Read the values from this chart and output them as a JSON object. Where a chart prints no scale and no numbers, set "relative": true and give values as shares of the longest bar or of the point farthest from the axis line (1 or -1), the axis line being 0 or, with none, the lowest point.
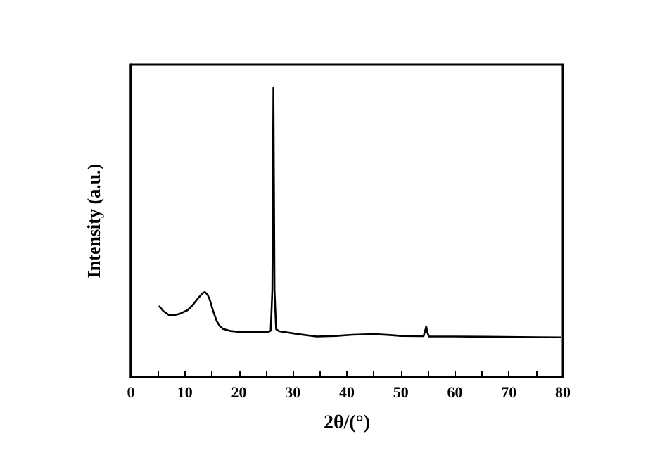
{
  "chart_data": {
    "type": "line",
    "relative": true,
    "xlabel": "2θ/(°)",
    "ylabel": "Intensity (a.u.)",
    "xlim": [
      0,
      80
    ],
    "xticks": [
      0,
      {
        "value": 5,
        "label": null
      },
      10,
      {
        "value": 15,
        "label": null
      },
      20,
      {
        "value": 25,
        "label": null
      },
      30,
      {
        "value": 35,
        "label": null
      },
      40,
      {
        "value": 45,
        "label": null
      },
      50,
      {
        "value": 55,
        "label": null
      },
      60,
      {
        "value": 65,
        "label": null
      },
      70,
      {
        "value": 75,
        "label": null
      },
      80
    ],
    "tick_labels": "x",
    "grid": false,
    "marker": "none",
    "line_style": "solid",
    "series": [
      {
        "color": "#000000",
        "x": [
          5.2,
          6,
          7,
          7.7,
          9,
          10.5,
          11.5,
          12.6,
          13.3,
          13.7,
          14.2,
          14.6,
          15.2,
          15.9,
          16.5,
          17.1,
          18.5,
          20.4,
          23,
          25.4,
          25.9,
          26.2,
          26.4,
          26.6,
          26.9,
          27.5,
          28.6,
          31,
          34.4,
          38,
          41,
          45.1,
          48,
          50,
          54.2,
          54.5,
          54.7,
          54.9,
          55.2,
          60,
          65.7,
          72,
          79.7
        ],
        "values": [
          0.246,
          0.228,
          0.215,
          0.213,
          0.218,
          0.231,
          0.25,
          0.276,
          0.29,
          0.294,
          0.285,
          0.268,
          0.23,
          0.193,
          0.175,
          0.166,
          0.159,
          0.155,
          0.155,
          0.155,
          0.16,
          0.3,
          1,
          0.3,
          0.165,
          0.158,
          0.155,
          0.148,
          0.14,
          0.142,
          0.146,
          0.148,
          0.145,
          0.142,
          0.141,
          0.16,
          0.175,
          0.155,
          0.14,
          0.14,
          0.139,
          0.138,
          0.137
        ]
      }
    ]
  }
}
